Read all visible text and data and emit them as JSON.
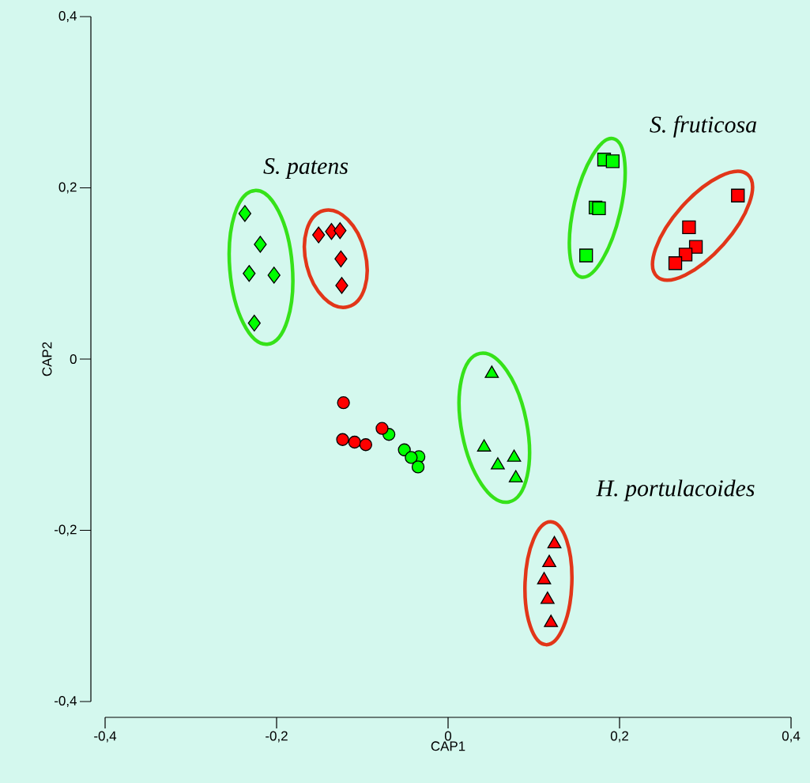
{
  "chart_data": {
    "type": "scatter",
    "xlabel": "CAP1",
    "ylabel": "CAP2",
    "xlim": [
      -0.4,
      0.4
    ],
    "ylim": [
      -0.4,
      0.4
    ],
    "xticks": [
      {
        "value": -0.4,
        "label": "-0,4"
      },
      {
        "value": -0.2,
        "label": "-0,2"
      },
      0,
      {
        "value": 0.2,
        "label": "0,2"
      },
      {
        "value": 0.4,
        "label": "0,4"
      }
    ],
    "yticks": [
      {
        "value": -0.4,
        "label": "-0,4"
      },
      {
        "value": -0.2,
        "label": "-0,2"
      },
      0,
      {
        "value": 0.2,
        "label": "0,2"
      },
      {
        "value": 0.4,
        "label": "0,4"
      }
    ],
    "grid": false,
    "series": [
      {
        "color": "#00ff00",
        "marker": "diamond",
        "x": [
          -0.237,
          -0.219,
          -0.232,
          -0.203,
          -0.226
        ],
        "values": [
          0.17,
          0.134,
          0.1,
          0.098,
          0.042
        ]
      },
      {
        "color": "#ff0000",
        "marker": "diamond",
        "x": [
          -0.151,
          -0.136,
          -0.126,
          -0.125,
          -0.124
        ],
        "values": [
          0.145,
          0.149,
          0.15,
          0.117,
          0.086
        ]
      },
      {
        "color": "#00ff00",
        "marker": "circle",
        "x": [
          -0.069,
          -0.051,
          -0.034,
          -0.043,
          -0.035
        ],
        "values": [
          -0.088,
          -0.106,
          -0.114,
          -0.115,
          -0.126
        ]
      },
      {
        "color": "#ff0000",
        "marker": "circle",
        "x": [
          -0.122,
          -0.123,
          -0.109,
          -0.096,
          -0.077
        ],
        "values": [
          -0.051,
          -0.094,
          -0.097,
          -0.1,
          -0.081
        ]
      },
      {
        "color": "#00ff00",
        "marker": "triangle",
        "x": [
          0.051,
          0.042,
          0.058,
          0.077,
          0.079
        ],
        "values": [
          -0.017,
          -0.103,
          -0.124,
          -0.115,
          -0.139
        ]
      },
      {
        "color": "#ff0000",
        "marker": "triangle",
        "x": [
          0.124,
          0.118,
          0.112,
          0.116,
          0.12
        ],
        "values": [
          -0.216,
          -0.238,
          -0.258,
          -0.281,
          -0.308
        ]
      },
      {
        "color": "#00ff00",
        "marker": "square",
        "x": [
          0.182,
          0.192,
          0.172,
          0.176,
          0.161
        ],
        "values": [
          0.233,
          0.231,
          0.177,
          0.176,
          0.121
        ]
      },
      {
        "color": "#ff0000",
        "marker": "square",
        "x": [
          0.338,
          0.281,
          0.289,
          0.277,
          0.265
        ],
        "values": [
          0.191,
          0.154,
          0.131,
          0.122,
          0.112
        ]
      }
    ],
    "annotations": [
      "S. patens",
      "S. fruticosa",
      "H. portulacoides"
    ]
  }
}
